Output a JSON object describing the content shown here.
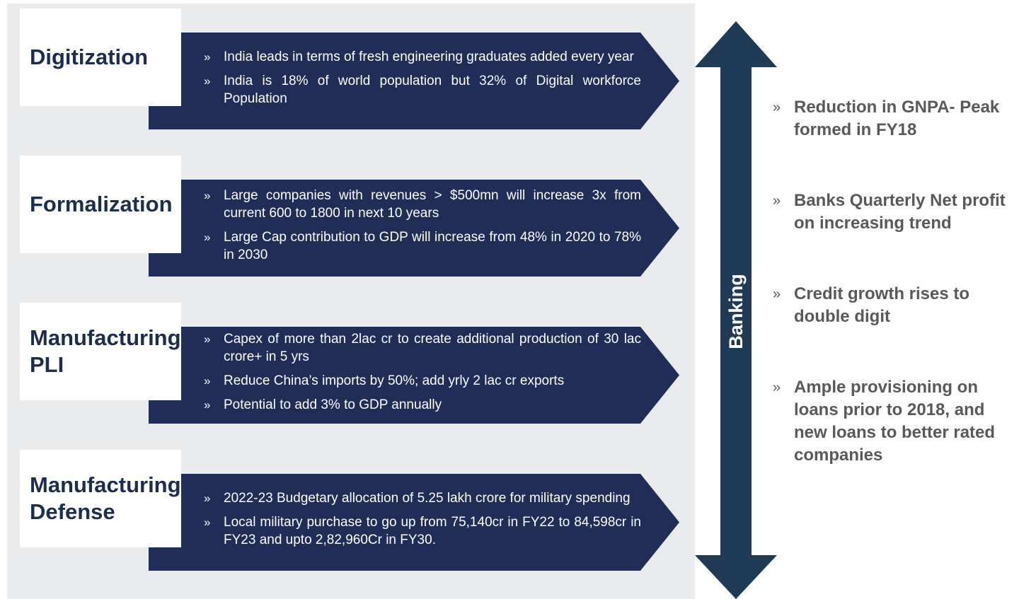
{
  "bullet_marker": "»",
  "rows": [
    {
      "label": "Digitization",
      "bullets": [
        "India leads in terms of fresh engineering graduates added every year",
        "India is 18% of world population but 32% of Digital workforce Population"
      ]
    },
    {
      "label": "Formalization",
      "bullets": [
        "Large companies with revenues > $500mn will increase 3x from current 600 to 1800 in next 10 years",
        "Large Cap contribution to GDP will increase from 48% in 2020 to 78% in 2030"
      ]
    },
    {
      "label": "Manufacturing-PLI",
      "bullets": [
        "Capex of more than 2lac cr to create additional production of 30 lac crore+ in 5 yrs",
        "Reduce China’s imports by 50%; add  yrly 2 lac cr exports",
        "Potential to add 3% to GDP annually"
      ]
    },
    {
      "label": "Manufacturing-Defense",
      "bullets": [
        "2022-23 Budgetary allocation of  5.25 lakh crore for military spending",
        "Local military purchase to go up from   75,140cr in FY22 to  84,598cr in  FY23 and upto  2,82,960Cr in FY30."
      ]
    }
  ],
  "banking": {
    "label": "Banking",
    "bullets": [
      "Reduction in GNPA- Peak formed in FY18",
      "Banks Quarterly Net profit  on increasing trend",
      "Credit growth rises to double digit",
      "Ample provisioning on loans prior to 2018, and new loans to better rated companies"
    ]
  }
}
